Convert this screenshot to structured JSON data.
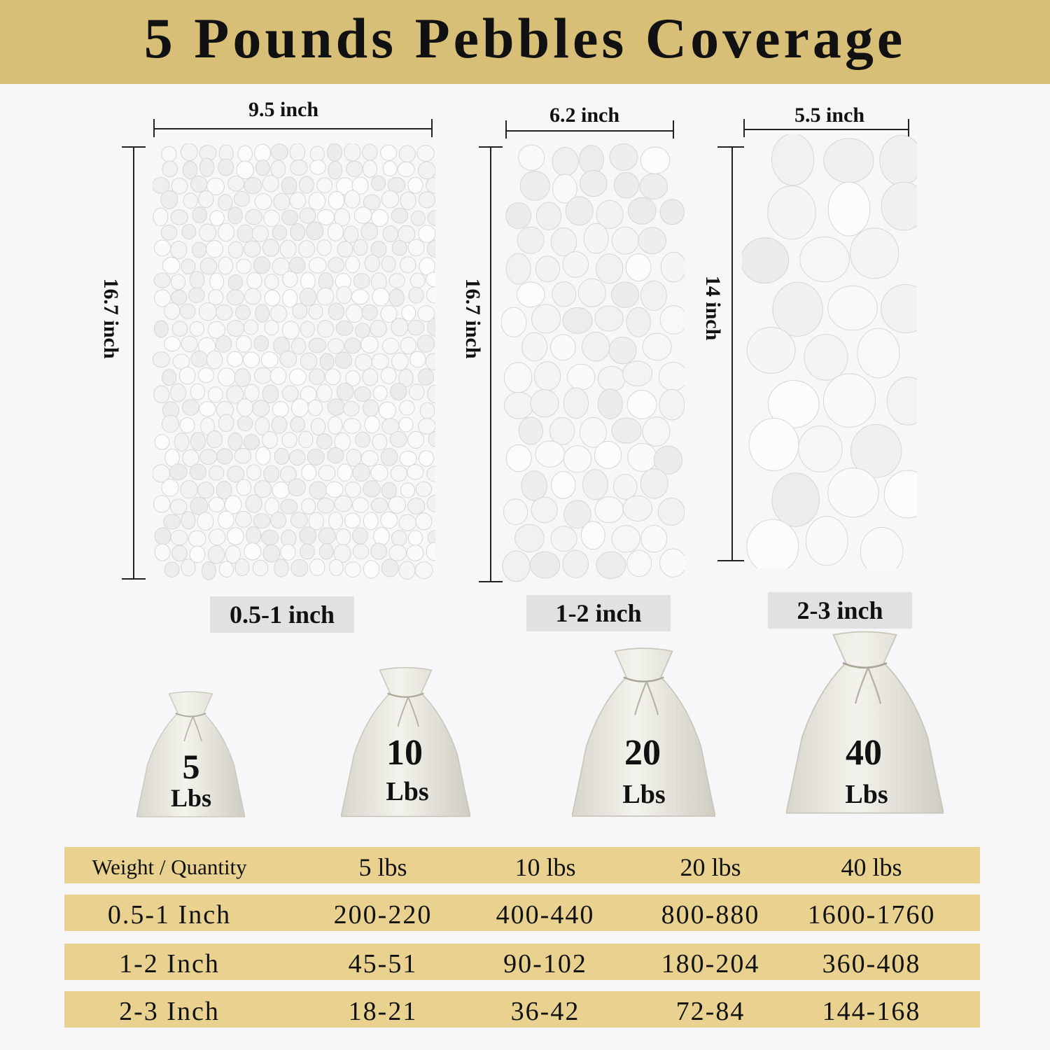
{
  "title": "5 Pounds Pebbles Coverage",
  "colors": {
    "header_band": "#d8bf78",
    "table_row": "#e9d28f",
    "size_label_bg": "#e1e1e1",
    "pebble": "#f4f4f2"
  },
  "panels": [
    {
      "width": "9.5 inch",
      "height": "16.7 inch",
      "size": "0.5-1 inch"
    },
    {
      "width": "6.2 inch",
      "height": "16.7 inch",
      "size": "1-2 inch"
    },
    {
      "width": "5.5 inch",
      "height": "14 inch",
      "size": "2-3 inch"
    }
  ],
  "bags": [
    {
      "number": "5",
      "unit": "Lbs"
    },
    {
      "number": "10",
      "unit": "Lbs"
    },
    {
      "number": "20",
      "unit": "Lbs"
    },
    {
      "number": "40",
      "unit": "Lbs"
    }
  ],
  "table": {
    "header": [
      "Weight / Quantity",
      "5 lbs",
      "10 lbs",
      "20 lbs",
      "40 lbs"
    ],
    "rows": [
      [
        "0.5-1 Inch",
        "200-220",
        "400-440",
        "800-880",
        "1600-1760"
      ],
      [
        "1-2 Inch",
        "45-51",
        "90-102",
        "180-204",
        "360-408"
      ],
      [
        "2-3 Inch",
        "18-21",
        "36-42",
        "72-84",
        "144-168"
      ]
    ]
  }
}
